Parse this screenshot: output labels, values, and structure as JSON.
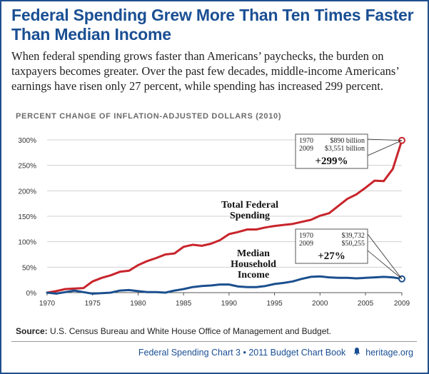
{
  "title": "Federal Spending Grew More Than Ten Times Faster Than Median Income",
  "subtitle": "When federal spending grows faster than Americans’ paychecks, the burden on taxpayers becomes greater. Over the past few decades, middle-income Americans’ earnings have risen only 27 percent, while spending has increased 299 percent.",
  "section_label": "PERCENT CHANGE OF INFLATION-ADJUSTED DOLLARS (2010)",
  "source_label": "Source:",
  "source_text": "U.S. Census Bureau and White House Office of Management and Budget.",
  "footer": {
    "text": "Federal Spending Chart 3 • 2011 Budget Chart Book",
    "site": "heritage.org"
  },
  "colors": {
    "spending": "#c8242b",
    "income": "#1b4f8e",
    "title": "#1a4f93",
    "grid": "#d0d0d0"
  },
  "chart_data": {
    "type": "line",
    "x": [
      1970,
      1971,
      1972,
      1973,
      1974,
      1975,
      1976,
      1977,
      1978,
      1979,
      1980,
      1981,
      1982,
      1983,
      1984,
      1985,
      1986,
      1987,
      1988,
      1989,
      1990,
      1991,
      1992,
      1993,
      1994,
      1995,
      1996,
      1997,
      1998,
      1999,
      2000,
      2001,
      2002,
      2003,
      2004,
      2005,
      2006,
      2007,
      2008,
      2009
    ],
    "series": [
      {
        "name": "Total Federal Spending",
        "color": "#c8242b",
        "values": [
          0,
          3,
          7,
          8,
          9,
          22,
          29,
          34,
          41,
          43,
          54,
          62,
          68,
          75,
          77,
          90,
          94,
          92,
          96,
          103,
          115,
          119,
          124,
          124,
          128,
          131,
          133,
          135,
          139,
          143,
          151,
          156,
          170,
          184,
          193,
          206,
          220,
          219,
          243,
          299
        ]
      },
      {
        "name": "Median Household Income",
        "color": "#1b4f8e",
        "values": [
          0,
          -2,
          1,
          4,
          1,
          -2,
          -1,
          0,
          4,
          5,
          3,
          1,
          1,
          0,
          4,
          7,
          11,
          13,
          14,
          16,
          16,
          12,
          11,
          11,
          13,
          17,
          19,
          22,
          27,
          31,
          32,
          30,
          29,
          29,
          28,
          29,
          30,
          31,
          30,
          27
        ]
      }
    ],
    "series_labels": [
      {
        "series": 0,
        "lines": [
          "Total Federal",
          "Spending"
        ]
      },
      {
        "series": 1,
        "lines": [
          "Median",
          "Household",
          "Income"
        ]
      }
    ],
    "xticks": [
      1970,
      1975,
      1980,
      1985,
      1990,
      1995,
      2000,
      2005,
      2009
    ],
    "yticks": [
      0,
      50,
      100,
      150,
      200,
      250,
      300
    ],
    "ytick_labels": [
      "0%",
      "50%",
      "100%",
      "150%",
      "200%",
      "250%",
      "300%"
    ],
    "ylim": [
      0,
      300
    ],
    "xlim": [
      1970,
      2009
    ],
    "grid": true,
    "annotations": [
      {
        "series": 0,
        "rows": [
          [
            "1970",
            "$890 billion"
          ],
          [
            "2009",
            "$3,551 billion"
          ]
        ],
        "change": "+299%"
      },
      {
        "series": 1,
        "rows": [
          [
            "1970",
            "$39,732"
          ],
          [
            "2009",
            "$50,255"
          ]
        ],
        "change": "+27%"
      }
    ]
  }
}
